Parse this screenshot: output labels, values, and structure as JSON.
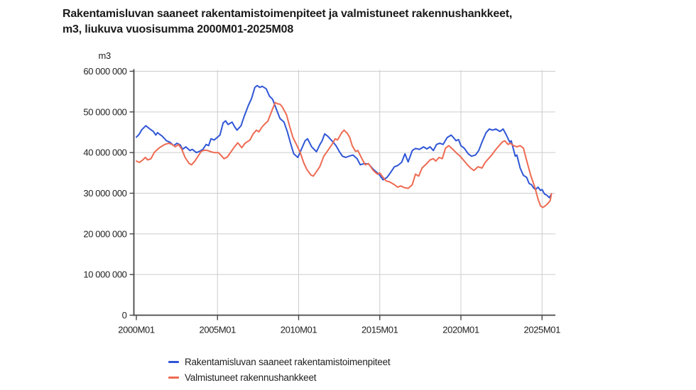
{
  "header": {
    "title_line1": "Rakentamisluvan saaneet rakentamistoimenpiteet ja valmistuneet rakennushankkeet,",
    "title_line2": "m3, liukuva vuosisumma 2000M01-2025M08"
  },
  "chart": {
    "unit_label": "m3",
    "colors": {
      "permits": "#3056d6",
      "completed": "#ee6a52",
      "grid": "#cccccc",
      "axis": "#474747",
      "text": "#1f1f1f"
    },
    "y_axis": {
      "tick_labels": [
        "60 000 000",
        "50 000 000",
        "40 000 000",
        "30 000 000",
        "20 000 000",
        "10 000 000",
        "0"
      ],
      "tick_values_million_m3": [
        60,
        50,
        40,
        30,
        20,
        10,
        0
      ]
    },
    "x_axis": {
      "tick_labels": [
        "2000M01",
        "2005M01",
        "2010M01",
        "2015M01",
        "2020M01",
        "2025M01"
      ],
      "tick_years": [
        2000,
        2005,
        2010,
        2015,
        2020,
        2025
      ]
    }
  },
  "legend": {
    "items": [
      {
        "label": "Rakentamisluvan saaneet rakentamistoimenpiteet",
        "color_key": "permits"
      },
      {
        "label": "Valmistuneet rakennushankkeet",
        "color_key": "completed"
      }
    ]
  },
  "chart_data": {
    "type": "line",
    "title": "Rakentamisluvan saaneet rakentamistoimenpiteet ja valmistuneet rakennushankkeet, m3, liukuva vuosisumma 2000M01-2025M08",
    "xlabel": "",
    "ylabel": "m3",
    "y_unit": "m3, values in millions of m3",
    "x_unit": "decimal year (2000M01 = 2000.0)",
    "x_range": [
      2000.0,
      2025.67
    ],
    "ylim_million_m3": [
      0,
      60
    ],
    "grid": true,
    "legend_position": "bottom-left",
    "x_tick_labels": [
      "2000M01",
      "2005M01",
      "2010M01",
      "2015M01",
      "2020M01",
      "2025M01"
    ],
    "y_tick_labels": [
      "0",
      "10 000 000",
      "20 000 000",
      "30 000 000",
      "40 000 000",
      "50 000 000",
      "60 000 000"
    ],
    "series": [
      {
        "name": "Rakentamisluvan saaneet rakentamistoimenpiteet",
        "slug": "permits",
        "color": "#3056d6",
        "points_year_million_m3": [
          [
            2000.0,
            43.8
          ],
          [
            2000.17,
            44.5
          ],
          [
            2000.33,
            45.6
          ],
          [
            2000.58,
            46.6
          ],
          [
            2000.83,
            45.8
          ],
          [
            2001.05,
            45.2
          ],
          [
            2001.2,
            44.3
          ],
          [
            2001.3,
            44.9
          ],
          [
            2001.6,
            44.0
          ],
          [
            2001.85,
            42.9
          ],
          [
            2002.05,
            42.6
          ],
          [
            2002.3,
            41.7
          ],
          [
            2002.5,
            42.3
          ],
          [
            2002.7,
            41.9
          ],
          [
            2002.85,
            40.8
          ],
          [
            2003.05,
            41.4
          ],
          [
            2003.3,
            40.5
          ],
          [
            2003.45,
            40.8
          ],
          [
            2003.7,
            40.0
          ],
          [
            2003.9,
            40.3
          ],
          [
            2004.1,
            40.8
          ],
          [
            2004.3,
            42.0
          ],
          [
            2004.45,
            41.7
          ],
          [
            2004.6,
            43.4
          ],
          [
            2004.8,
            43.1
          ],
          [
            2005.0,
            43.8
          ],
          [
            2005.15,
            44.3
          ],
          [
            2005.35,
            47.3
          ],
          [
            2005.5,
            47.8
          ],
          [
            2005.65,
            46.9
          ],
          [
            2005.9,
            47.5
          ],
          [
            2006.05,
            46.4
          ],
          [
            2006.2,
            45.5
          ],
          [
            2006.45,
            46.6
          ],
          [
            2006.65,
            49.0
          ],
          [
            2006.9,
            51.6
          ],
          [
            2007.1,
            53.3
          ],
          [
            2007.3,
            56.0
          ],
          [
            2007.45,
            56.5
          ],
          [
            2007.6,
            56.0
          ],
          [
            2007.75,
            56.3
          ],
          [
            2008.0,
            55.7
          ],
          [
            2008.2,
            53.9
          ],
          [
            2008.4,
            53.1
          ],
          [
            2008.65,
            50.4
          ],
          [
            2008.85,
            48.4
          ],
          [
            2009.1,
            47.5
          ],
          [
            2009.3,
            45.2
          ],
          [
            2009.5,
            42.3
          ],
          [
            2009.7,
            39.7
          ],
          [
            2009.95,
            38.8
          ],
          [
            2010.2,
            41.1
          ],
          [
            2010.4,
            42.9
          ],
          [
            2010.55,
            43.4
          ],
          [
            2010.8,
            41.4
          ],
          [
            2011.1,
            40.2
          ],
          [
            2011.3,
            41.9
          ],
          [
            2011.45,
            42.9
          ],
          [
            2011.6,
            44.6
          ],
          [
            2011.8,
            44.0
          ],
          [
            2012.05,
            42.9
          ],
          [
            2012.3,
            41.7
          ],
          [
            2012.5,
            40.3
          ],
          [
            2012.7,
            39.1
          ],
          [
            2012.9,
            38.8
          ],
          [
            2013.1,
            39.1
          ],
          [
            2013.35,
            39.4
          ],
          [
            2013.6,
            38.5
          ],
          [
            2013.8,
            37.0
          ],
          [
            2014.05,
            37.3
          ],
          [
            2014.3,
            37.2
          ],
          [
            2014.6,
            35.9
          ],
          [
            2014.85,
            35.0
          ],
          [
            2015.0,
            34.4
          ],
          [
            2015.2,
            33.3
          ],
          [
            2015.45,
            33.9
          ],
          [
            2015.65,
            35.0
          ],
          [
            2015.9,
            36.5
          ],
          [
            2016.1,
            36.8
          ],
          [
            2016.35,
            37.6
          ],
          [
            2016.55,
            39.7
          ],
          [
            2016.75,
            37.7
          ],
          [
            2017.0,
            40.5
          ],
          [
            2017.2,
            41.0
          ],
          [
            2017.45,
            40.8
          ],
          [
            2017.7,
            41.4
          ],
          [
            2017.9,
            40.9
          ],
          [
            2018.1,
            41.4
          ],
          [
            2018.3,
            40.5
          ],
          [
            2018.5,
            42.0
          ],
          [
            2018.7,
            42.3
          ],
          [
            2018.9,
            42.0
          ],
          [
            2019.15,
            43.7
          ],
          [
            2019.4,
            44.3
          ],
          [
            2019.6,
            43.4
          ],
          [
            2019.7,
            42.9
          ],
          [
            2019.85,
            43.2
          ],
          [
            2020.0,
            41.7
          ],
          [
            2020.2,
            41.1
          ],
          [
            2020.45,
            39.7
          ],
          [
            2020.65,
            39.1
          ],
          [
            2020.9,
            39.4
          ],
          [
            2021.1,
            40.5
          ],
          [
            2021.3,
            42.6
          ],
          [
            2021.55,
            44.9
          ],
          [
            2021.75,
            45.8
          ],
          [
            2021.95,
            45.5
          ],
          [
            2022.15,
            45.8
          ],
          [
            2022.4,
            45.2
          ],
          [
            2022.6,
            45.8
          ],
          [
            2022.8,
            44.3
          ],
          [
            2023.0,
            42.6
          ],
          [
            2023.1,
            42.9
          ],
          [
            2023.35,
            39.1
          ],
          [
            2023.45,
            39.4
          ],
          [
            2023.65,
            36.2
          ],
          [
            2023.85,
            34.4
          ],
          [
            2024.05,
            33.9
          ],
          [
            2024.2,
            32.4
          ],
          [
            2024.35,
            32.1
          ],
          [
            2024.5,
            31.2
          ],
          [
            2024.6,
            30.9
          ],
          [
            2024.75,
            31.5
          ],
          [
            2024.9,
            30.7
          ],
          [
            2025.0,
            30.9
          ],
          [
            2025.15,
            29.8
          ],
          [
            2025.3,
            29.5
          ],
          [
            2025.45,
            28.9
          ],
          [
            2025.58,
            29.8
          ]
        ]
      },
      {
        "name": "Valmistuneet rakennushankkeet",
        "slug": "completed",
        "color": "#ee6a52",
        "points_year_million_m3": [
          [
            2000.0,
            37.9
          ],
          [
            2000.2,
            37.6
          ],
          [
            2000.4,
            38.2
          ],
          [
            2000.55,
            38.8
          ],
          [
            2000.7,
            38.2
          ],
          [
            2000.9,
            38.5
          ],
          [
            2001.1,
            40.0
          ],
          [
            2001.3,
            40.8
          ],
          [
            2001.5,
            41.4
          ],
          [
            2001.75,
            42.0
          ],
          [
            2002.0,
            42.3
          ],
          [
            2002.2,
            42.0
          ],
          [
            2002.4,
            41.4
          ],
          [
            2002.6,
            42.0
          ],
          [
            2002.8,
            40.8
          ],
          [
            2003.0,
            38.8
          ],
          [
            2003.25,
            37.3
          ],
          [
            2003.4,
            37.0
          ],
          [
            2003.6,
            37.9
          ],
          [
            2003.8,
            39.1
          ],
          [
            2004.0,
            40.3
          ],
          [
            2004.2,
            40.6
          ],
          [
            2004.4,
            40.5
          ],
          [
            2004.6,
            40.2
          ],
          [
            2004.8,
            40.0
          ],
          [
            2005.05,
            40.0
          ],
          [
            2005.2,
            39.4
          ],
          [
            2005.4,
            38.5
          ],
          [
            2005.6,
            38.9
          ],
          [
            2005.85,
            40.3
          ],
          [
            2006.05,
            41.4
          ],
          [
            2006.25,
            42.4
          ],
          [
            2006.5,
            41.2
          ],
          [
            2006.7,
            42.3
          ],
          [
            2007.0,
            43.1
          ],
          [
            2007.2,
            44.6
          ],
          [
            2007.4,
            45.5
          ],
          [
            2007.55,
            45.1
          ],
          [
            2007.75,
            46.3
          ],
          [
            2007.95,
            47.2
          ],
          [
            2008.1,
            47.7
          ],
          [
            2008.3,
            49.8
          ],
          [
            2008.55,
            52.3
          ],
          [
            2008.7,
            52.0
          ],
          [
            2008.85,
            51.9
          ],
          [
            2009.0,
            51.2
          ],
          [
            2009.25,
            49.3
          ],
          [
            2009.45,
            46.4
          ],
          [
            2009.65,
            43.7
          ],
          [
            2009.9,
            41.7
          ],
          [
            2010.1,
            40.0
          ],
          [
            2010.3,
            37.6
          ],
          [
            2010.5,
            35.9
          ],
          [
            2010.75,
            34.5
          ],
          [
            2010.9,
            34.2
          ],
          [
            2011.1,
            35.3
          ],
          [
            2011.3,
            36.5
          ],
          [
            2011.55,
            39.1
          ],
          [
            2011.8,
            40.5
          ],
          [
            2012.1,
            42.3
          ],
          [
            2012.25,
            43.4
          ],
          [
            2012.4,
            43.1
          ],
          [
            2012.65,
            44.9
          ],
          [
            2012.8,
            45.5
          ],
          [
            2013.0,
            44.7
          ],
          [
            2013.15,
            43.7
          ],
          [
            2013.3,
            41.7
          ],
          [
            2013.5,
            40.3
          ],
          [
            2013.65,
            40.5
          ],
          [
            2013.9,
            38.5
          ],
          [
            2014.1,
            37.0
          ],
          [
            2014.3,
            37.3
          ],
          [
            2014.6,
            35.6
          ],
          [
            2014.85,
            34.7
          ],
          [
            2015.0,
            35.0
          ],
          [
            2015.2,
            33.9
          ],
          [
            2015.4,
            33.0
          ],
          [
            2015.6,
            32.8
          ],
          [
            2015.9,
            32.1
          ],
          [
            2016.1,
            31.5
          ],
          [
            2016.3,
            31.8
          ],
          [
            2016.5,
            31.4
          ],
          [
            2016.75,
            31.2
          ],
          [
            2017.0,
            32.1
          ],
          [
            2017.2,
            34.7
          ],
          [
            2017.4,
            34.2
          ],
          [
            2017.6,
            36.2
          ],
          [
            2017.9,
            37.3
          ],
          [
            2018.1,
            38.2
          ],
          [
            2018.3,
            38.5
          ],
          [
            2018.45,
            37.9
          ],
          [
            2018.65,
            38.8
          ],
          [
            2018.85,
            38.5
          ],
          [
            2019.05,
            41.1
          ],
          [
            2019.25,
            41.7
          ],
          [
            2019.5,
            40.8
          ],
          [
            2019.7,
            40.0
          ],
          [
            2019.95,
            39.1
          ],
          [
            2020.15,
            38.2
          ],
          [
            2020.4,
            37.0
          ],
          [
            2020.6,
            36.2
          ],
          [
            2020.8,
            35.6
          ],
          [
            2021.05,
            36.5
          ],
          [
            2021.3,
            36.2
          ],
          [
            2021.5,
            37.6
          ],
          [
            2021.7,
            38.5
          ],
          [
            2021.9,
            39.4
          ],
          [
            2022.1,
            40.5
          ],
          [
            2022.35,
            41.7
          ],
          [
            2022.55,
            42.6
          ],
          [
            2022.7,
            42.9
          ],
          [
            2022.9,
            42.0
          ],
          [
            2023.05,
            42.3
          ],
          [
            2023.25,
            41.7
          ],
          [
            2023.45,
            41.4
          ],
          [
            2023.65,
            41.7
          ],
          [
            2023.85,
            41.1
          ],
          [
            2024.1,
            37.3
          ],
          [
            2024.3,
            34.4
          ],
          [
            2024.55,
            31.5
          ],
          [
            2024.75,
            28.6
          ],
          [
            2024.9,
            26.9
          ],
          [
            2025.05,
            26.5
          ],
          [
            2025.2,
            26.9
          ],
          [
            2025.35,
            27.4
          ],
          [
            2025.5,
            28.2
          ],
          [
            2025.58,
            29.9
          ]
        ]
      }
    ]
  }
}
